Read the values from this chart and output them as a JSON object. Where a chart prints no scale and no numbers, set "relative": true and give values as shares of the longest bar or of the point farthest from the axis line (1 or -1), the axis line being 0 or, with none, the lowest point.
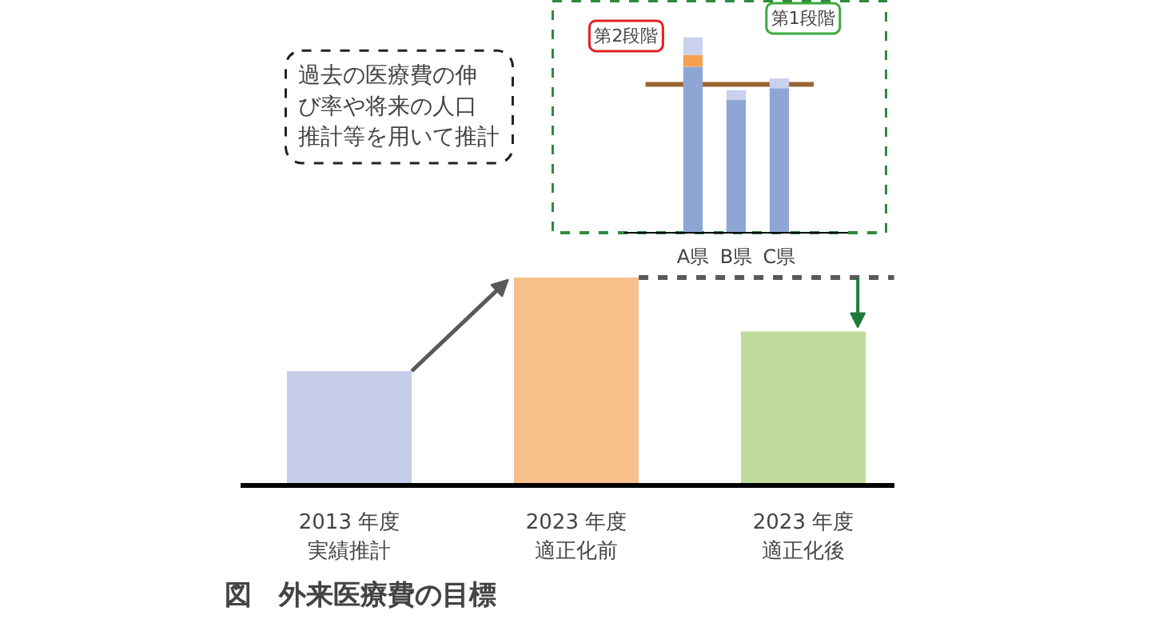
{
  "chart_data": [
    {
      "type": "bar",
      "title": "図　外来医療費の目標",
      "relative": true,
      "categories": [
        "2013 年度実績推計",
        "2023 年度適正化前",
        "2023 年度適正化後"
      ],
      "values": [
        0.55,
        1,
        0.74
      ],
      "colors": [
        "#c5cde8",
        "#f6c08a",
        "#bfdc9c"
      ],
      "ref_lines": [
        {
          "axis": "y",
          "value": 1,
          "color": "#595959",
          "line_style": "dashed"
        }
      ],
      "annotations": [
        "過去の医療費の伸び率や将来の人口推計等を用いて推計"
      ]
    },
    {
      "type": "bar",
      "relative": true,
      "stacked": true,
      "categories": [
        "A県",
        "B県",
        "C県"
      ],
      "series": [
        {
          "color": "#8ea6d6",
          "values": [
            0.85,
            0.68,
            0.74
          ]
        },
        {
          "color": "#f4a050",
          "values": [
            0.06,
            0,
            0
          ]
        },
        {
          "color": "#c9d1ec",
          "values": [
            0.09,
            0.05,
            0.05
          ]
        }
      ],
      "ref_lines": [
        {
          "axis": "y",
          "value": 0.76,
          "color": "#996633",
          "line_style": "solid"
        }
      ],
      "annotations": [
        "第2段階",
        "第1段階"
      ]
    }
  ]
}
